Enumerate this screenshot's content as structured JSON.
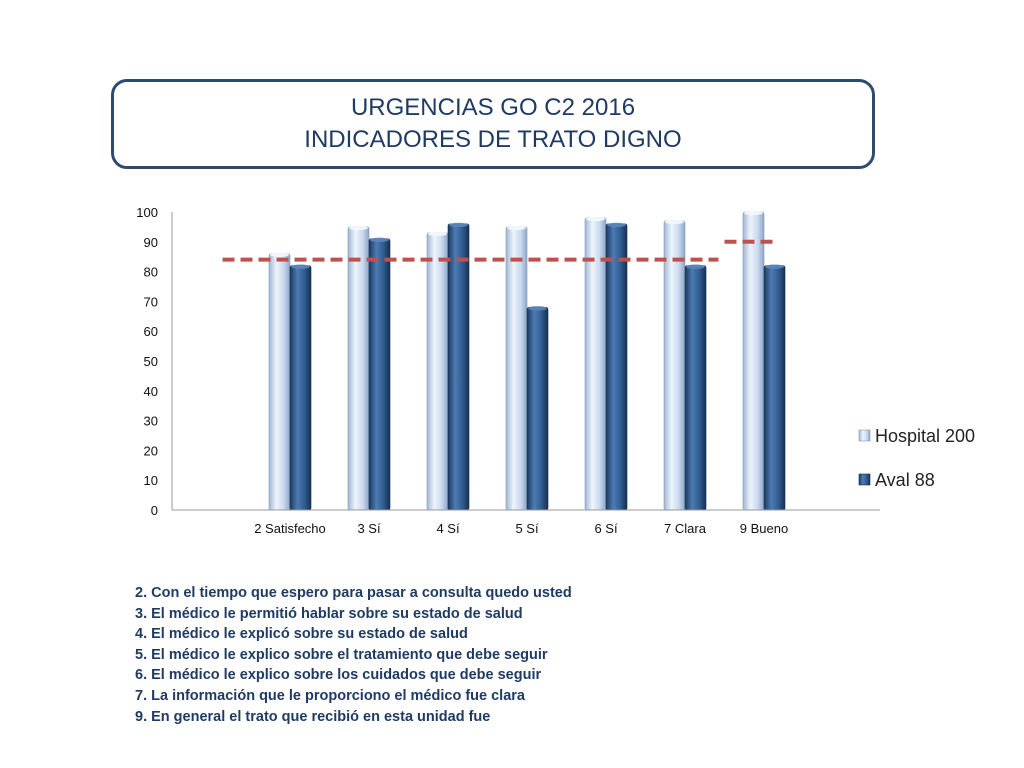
{
  "title": {
    "line1": "URGENCIAS GO C2 2016",
    "line2": "INDICADORES DE TRATO DIGNO"
  },
  "chart_data": {
    "type": "bar",
    "categories": [
      "2 Satisfecho",
      "3 Sí",
      "4 Sí",
      "5 Sí",
      "6 Sí",
      "7 Clara",
      "9 Bueno"
    ],
    "series": [
      {
        "name": "Hospital 200",
        "values": [
          86,
          95,
          93,
          95,
          98,
          97,
          100
        ],
        "color": "#c9d9ef"
      },
      {
        "name": "Aval 88",
        "values": [
          82,
          91,
          96,
          68,
          96,
          82,
          82
        ],
        "color": "#2f5b8e"
      }
    ],
    "reference_lines": [
      {
        "value": 84,
        "category_span": [
          "2 Satisfecho",
          "7 Clara"
        ],
        "color": "#c0504d",
        "style": "dashed"
      },
      {
        "value": 90,
        "category_span": [
          "9 Bueno",
          "9 Bueno"
        ],
        "color": "#c0504d",
        "style": "dashed"
      }
    ],
    "ylim": [
      0,
      100
    ],
    "yticks": [
      0,
      10,
      20,
      30,
      40,
      50,
      60,
      70,
      80,
      90,
      100
    ],
    "xlabel": "",
    "ylabel": "",
    "legend_position": "right",
    "grid": false
  },
  "notes": [
    "2. Con el tiempo que espero para pasar a consulta quedo usted",
    "3. El médico le permitió hablar sobre su estado de salud",
    "4. El médico le explicó sobre su estado de salud",
    "5. El médico le explico sobre el tratamiento que debe seguir",
    "6. El médico le explico sobre los cuidados que debe seguir",
    "7. La información que le proporciono el médico fue clara",
    "9. En general el trato que recibió en esta unidad fue"
  ]
}
